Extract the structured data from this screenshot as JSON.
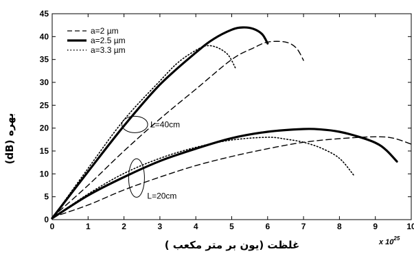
{
  "chart_data": {
    "type": "line",
    "xlabel": "غلظت (یون بر متر مکعب )",
    "ylabel": "بهره (dB)",
    "x_multiplier_base": "x 10",
    "x_multiplier_exp": "25",
    "xlim": [
      0,
      10
    ],
    "ylim": [
      0,
      45
    ],
    "x_ticks": [
      0,
      1,
      2,
      3,
      4,
      5,
      6,
      7,
      8,
      9,
      10
    ],
    "y_ticks": [
      0,
      5,
      10,
      15,
      20,
      25,
      30,
      35,
      40,
      45
    ],
    "grid": false,
    "legend_position": "top-left",
    "legend": [
      {
        "label": "a=2   µm",
        "style": "dashed"
      },
      {
        "label": "a=2.5 µm",
        "style": "solid"
      },
      {
        "label": "a=3.3 µm",
        "style": "dotted"
      }
    ],
    "annotations": [
      {
        "text": "L=40cm",
        "x": 2.3,
        "y": 20.8,
        "rx": 0.36,
        "ry": 1.8
      },
      {
        "text": "L=20cm",
        "x": 2.35,
        "y": 9.1,
        "rx": 0.22,
        "ry": 4.2
      }
    ],
    "series": [
      {
        "group": "L=40cm",
        "style": "dashed",
        "points": [
          [
            0,
            0.5
          ],
          [
            1,
            7.5
          ],
          [
            2,
            15
          ],
          [
            3,
            22
          ],
          [
            4,
            28.5
          ],
          [
            5,
            35
          ],
          [
            5.6,
            37.5
          ],
          [
            6,
            38.8
          ],
          [
            6.5,
            38.8
          ],
          [
            6.8,
            37.5
          ],
          [
            7,
            34.8
          ]
        ]
      },
      {
        "group": "L=40cm",
        "style": "solid",
        "points": [
          [
            0,
            0.3
          ],
          [
            1,
            10.5
          ],
          [
            2,
            20.5
          ],
          [
            3,
            29.5
          ],
          [
            4,
            36.5
          ],
          [
            4.5,
            39.5
          ],
          [
            5,
            41.5
          ],
          [
            5.3,
            42
          ],
          [
            5.6,
            41.7
          ],
          [
            5.85,
            40.5
          ],
          [
            6,
            38.5
          ]
        ]
      },
      {
        "group": "L=40cm",
        "style": "dotted",
        "points": [
          [
            0,
            0.3
          ],
          [
            1,
            11.2
          ],
          [
            2,
            21.8
          ],
          [
            3,
            30.3
          ],
          [
            3.5,
            34.3
          ],
          [
            4,
            37
          ],
          [
            4.3,
            38
          ],
          [
            4.6,
            37.6
          ],
          [
            4.9,
            36
          ],
          [
            5.1,
            33.2
          ]
        ]
      },
      {
        "group": "L=20cm",
        "style": "dashed",
        "points": [
          [
            0,
            0.5
          ],
          [
            1,
            3.2
          ],
          [
            2,
            6.5
          ],
          [
            3,
            9.3
          ],
          [
            4,
            11.8
          ],
          [
            5,
            13.8
          ],
          [
            6,
            15.5
          ],
          [
            7,
            16.9
          ],
          [
            8,
            17.7
          ],
          [
            9,
            18.1
          ],
          [
            9.5,
            17.8
          ],
          [
            10,
            16.5
          ]
        ]
      },
      {
        "group": "L=20cm",
        "style": "solid",
        "points": [
          [
            0,
            0.3
          ],
          [
            1,
            5.3
          ],
          [
            2,
            9.3
          ],
          [
            3,
            12.8
          ],
          [
            4,
            15.5
          ],
          [
            5,
            17.8
          ],
          [
            6,
            19.2
          ],
          [
            7,
            19.8
          ],
          [
            7.5,
            19.7
          ],
          [
            8,
            19.2
          ],
          [
            8.5,
            18.2
          ],
          [
            9,
            16.8
          ],
          [
            9.3,
            15.2
          ],
          [
            9.6,
            12.7
          ]
        ]
      },
      {
        "group": "L=20cm",
        "style": "dotted",
        "points": [
          [
            0,
            0.3
          ],
          [
            1,
            5.6
          ],
          [
            2,
            10.1
          ],
          [
            3,
            13.4
          ],
          [
            4,
            15.8
          ],
          [
            5,
            17.4
          ],
          [
            6,
            18
          ],
          [
            6.5,
            17.6
          ],
          [
            7,
            16.9
          ],
          [
            7.5,
            15.6
          ],
          [
            8,
            13.4
          ],
          [
            8.4,
            9.7
          ]
        ]
      }
    ]
  }
}
